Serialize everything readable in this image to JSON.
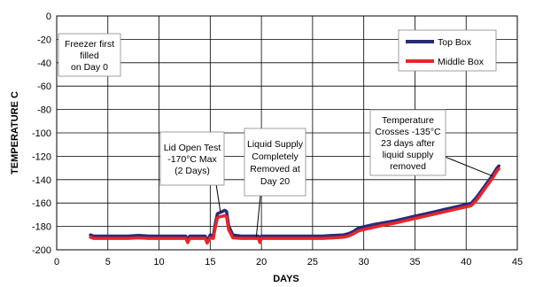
{
  "chart_data": {
    "type": "line",
    "xlabel": "DAYS",
    "ylabel": "TEMPERATURE C",
    "xlim": [
      0,
      45
    ],
    "ylim": [
      -200,
      0
    ],
    "xticks": [
      0,
      5,
      10,
      15,
      20,
      25,
      30,
      35,
      40,
      45
    ],
    "yticks": [
      0,
      -20,
      -40,
      -60,
      -80,
      -100,
      -120,
      -140,
      -160,
      -180,
      -200
    ],
    "grid": true,
    "legend_position": "top-right",
    "series": [
      {
        "name": "Top Box",
        "color": "#2a2a7a",
        "x": [
          3.3,
          3.6,
          4,
          5,
          6,
          7,
          8,
          9,
          10,
          11,
          12,
          12.6,
          12.8,
          13,
          13.3,
          13.8,
          14.2,
          14.5,
          14.7,
          15.0,
          15.3,
          15.5,
          15.7,
          15.9,
          16.2,
          16.4,
          16.6,
          16.8,
          17.2,
          18,
          19,
          19.7,
          19.85,
          20.0,
          21,
          22,
          23,
          24,
          25,
          26,
          27,
          28,
          28.5,
          29,
          29.5,
          30,
          31,
          32,
          33,
          34,
          35,
          36,
          37,
          38,
          39,
          40,
          40.5,
          41,
          41.5,
          42,
          42.5,
          43.0,
          43.2
        ],
        "y": [
          -188,
          -189,
          -189,
          -189,
          -189,
          -189,
          -188.5,
          -189,
          -189,
          -189,
          -189,
          -189,
          -192,
          -189,
          -189,
          -189,
          -189,
          -189,
          -193,
          -188,
          -189,
          -178,
          -170,
          -169,
          -168,
          -167,
          -168,
          -180,
          -188,
          -189,
          -189,
          -189,
          -192,
          -189,
          -189,
          -189,
          -189,
          -189,
          -189,
          -189,
          -188.5,
          -188,
          -187,
          -185,
          -182,
          -181,
          -179,
          -177.5,
          -176,
          -174,
          -172,
          -170,
          -168,
          -166,
          -164,
          -162,
          -161,
          -156,
          -150,
          -144,
          -138,
          -131,
          -129
        ]
      },
      {
        "name": "Middle Box",
        "color": "#e8262a",
        "x": [
          3.3,
          3.6,
          4,
          5,
          6,
          7,
          8,
          9,
          10,
          11,
          12,
          12.6,
          12.8,
          13,
          13.3,
          13.8,
          14.2,
          14.5,
          14.7,
          15.0,
          15.3,
          15.5,
          15.7,
          15.9,
          16.2,
          16.4,
          16.6,
          16.8,
          17.2,
          18,
          19,
          19.7,
          19.85,
          20.0,
          21,
          22,
          23,
          24,
          25,
          26,
          27,
          28,
          28.5,
          29,
          29.5,
          30,
          31,
          32,
          33,
          34,
          35,
          36,
          37,
          38,
          39,
          40,
          40.5,
          41,
          41.5,
          42,
          42.5,
          43.0,
          43.2
        ],
        "y": [
          -188.5,
          -189.5,
          -189.5,
          -189.5,
          -189.5,
          -189.5,
          -189,
          -189.5,
          -189.5,
          -189.5,
          -189.5,
          -189.5,
          -193,
          -189.5,
          -189.5,
          -189.5,
          -189.5,
          -189.5,
          -193.5,
          -189,
          -189.5,
          -180,
          -172,
          -171,
          -170.5,
          -170,
          -171,
          -182,
          -189,
          -189.5,
          -189.5,
          -189.5,
          -193,
          -189.5,
          -189.5,
          -189.5,
          -189.5,
          -189.5,
          -189.5,
          -189.5,
          -189,
          -188.5,
          -187.5,
          -185.5,
          -183,
          -182,
          -180,
          -178,
          -176.5,
          -174.5,
          -172.5,
          -170.5,
          -168.5,
          -166.5,
          -164.5,
          -162.5,
          -161.5,
          -157,
          -151,
          -145,
          -139,
          -132,
          -130
        ]
      }
    ],
    "legend": [
      {
        "label": "Top Box",
        "color": "#2a2a7a"
      },
      {
        "label": "Middle Box",
        "color": "#e8262a"
      }
    ],
    "annotations": [
      {
        "lines": [
          "Freezer first",
          "filled",
          "on Day 0"
        ]
      },
      {
        "lines": [
          "Lid Open Test",
          "-170°C Max",
          "(2 Days)"
        ]
      },
      {
        "lines": [
          "Liquid Supply",
          "Completely",
          "Removed at",
          "Day 20"
        ]
      },
      {
        "lines": [
          "Temperature",
          "Crosses -135°C",
          "23 days after",
          "liquid supply",
          "removed"
        ]
      }
    ]
  }
}
